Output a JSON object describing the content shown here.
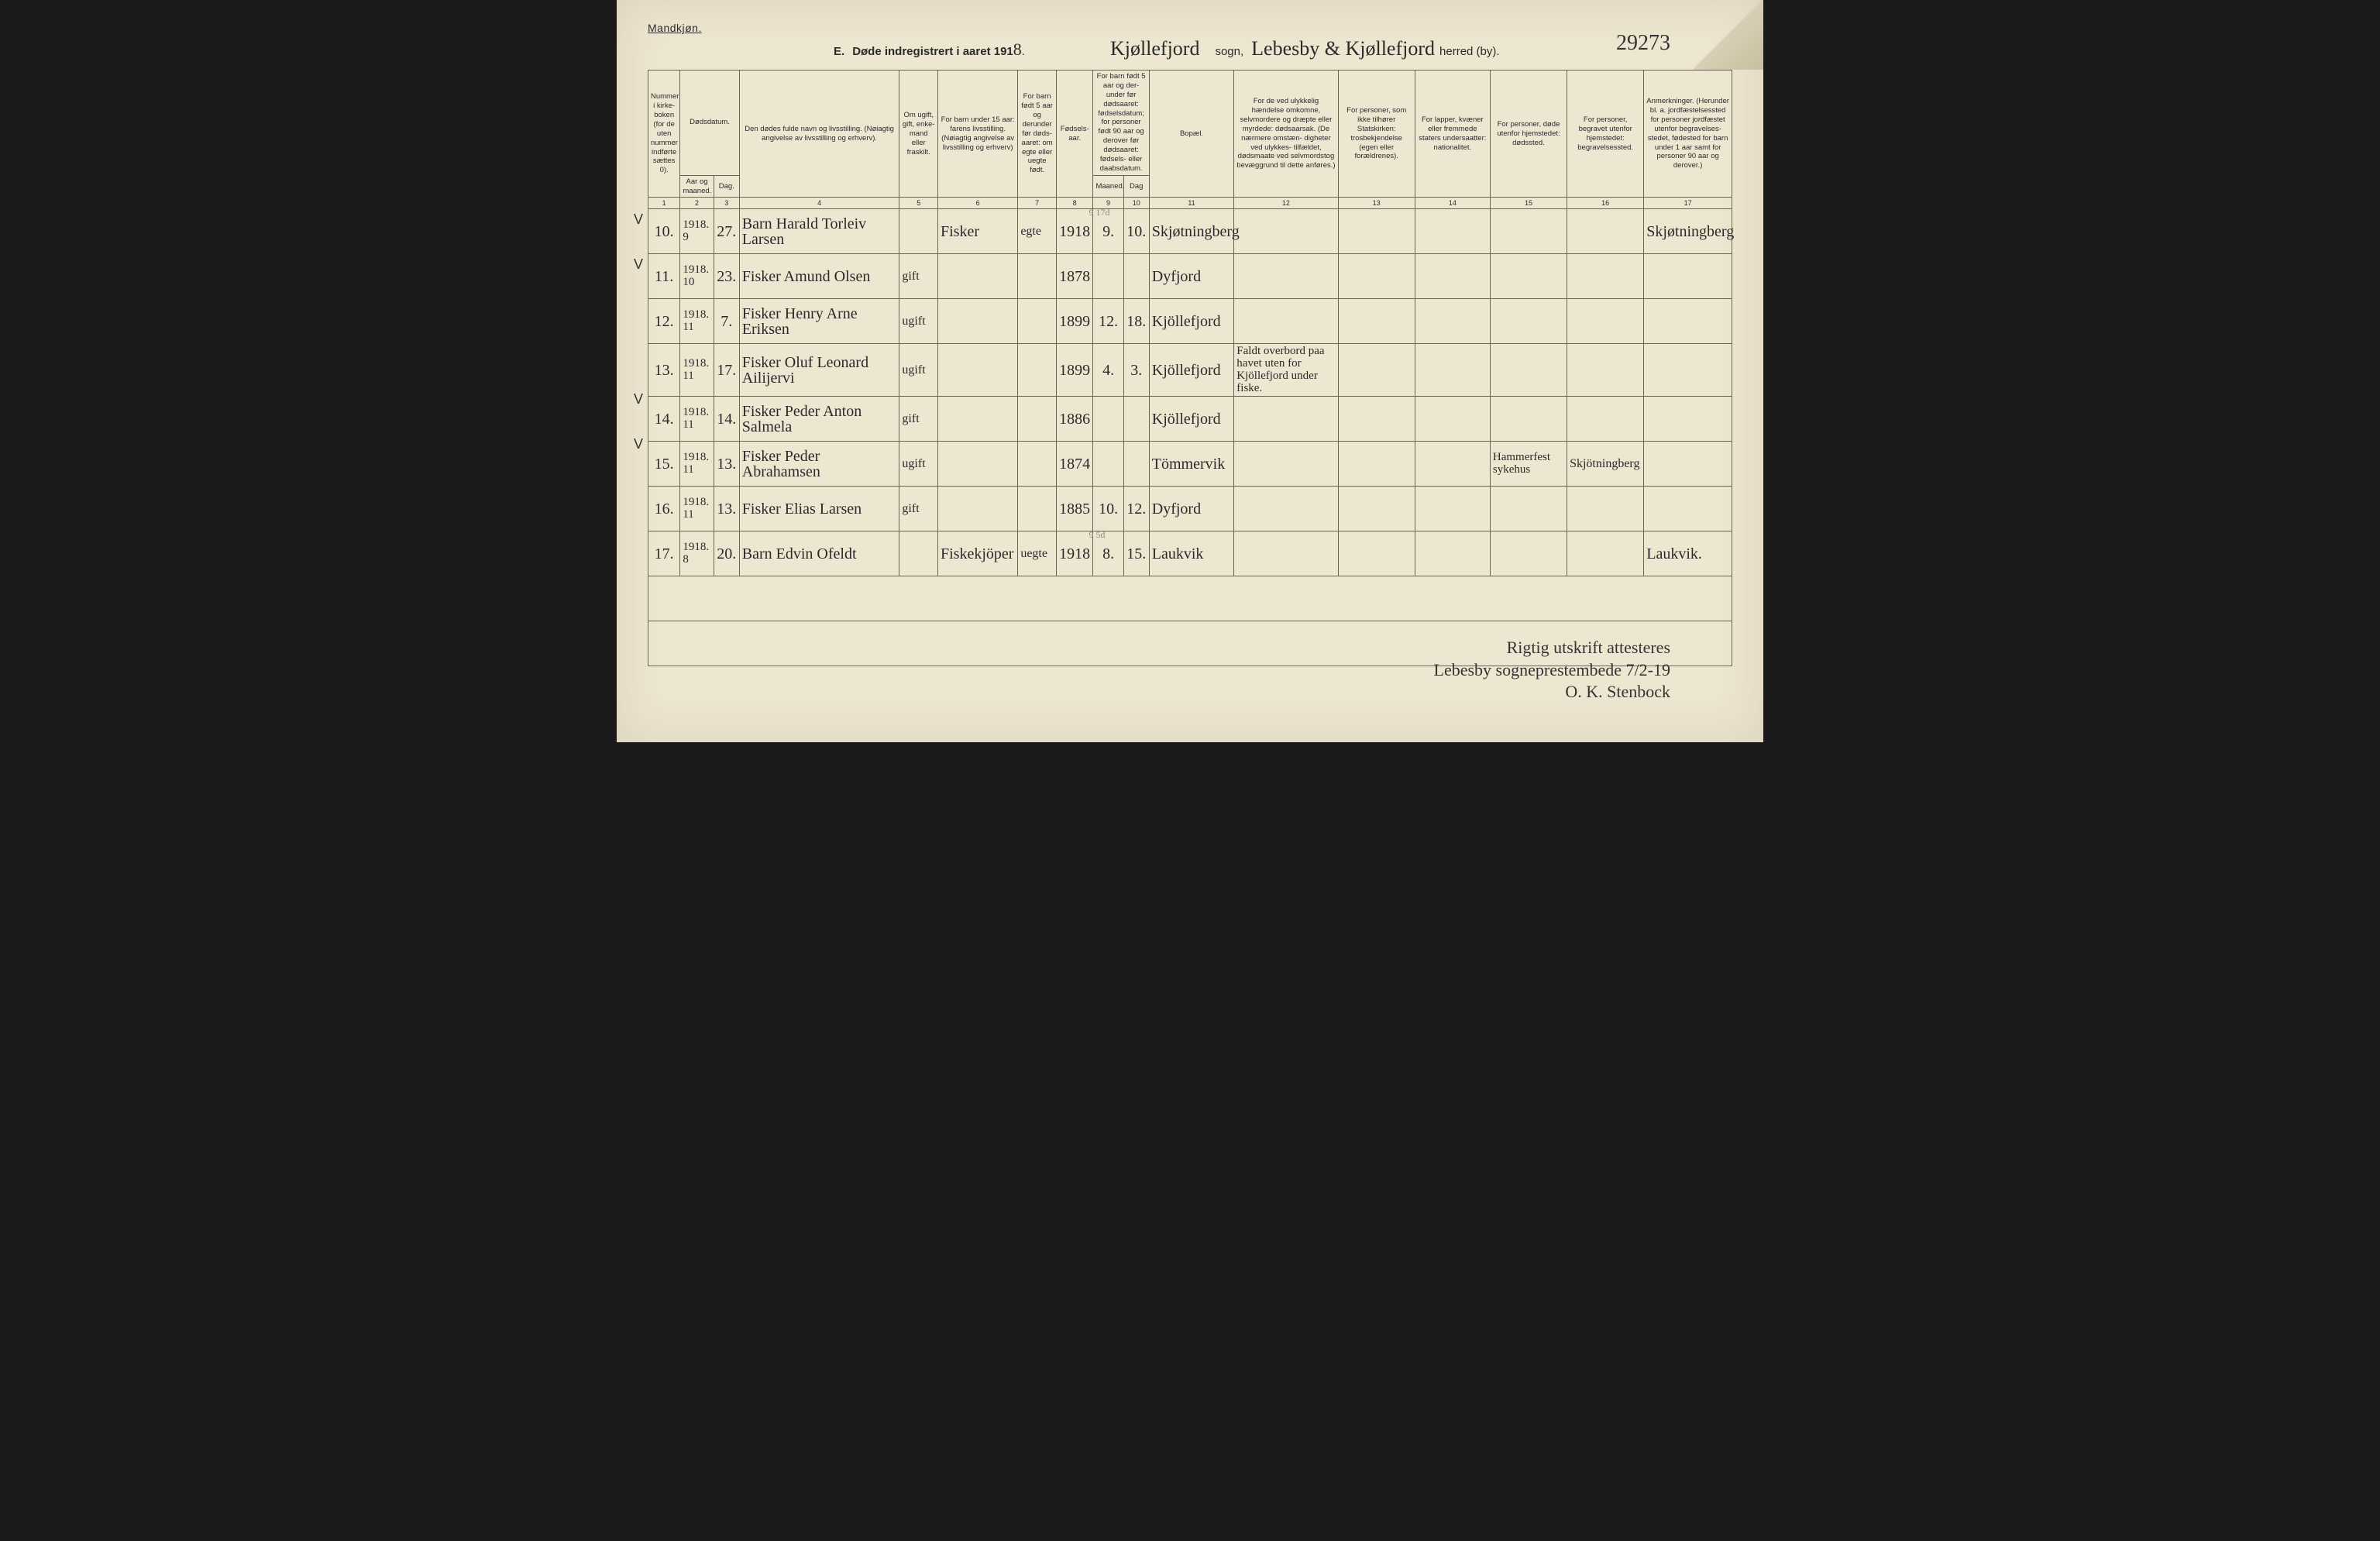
{
  "header": {
    "gender": "Mandkjøn.",
    "section": "E.",
    "title_prefix": "Døde indregistrert i aaret 191",
    "year_suffix": "8",
    "sogn_script": "Kjøllefjord",
    "sogn_label": "sogn,",
    "herred_script": "Lebesby & Kjøllefjord",
    "herred_label": "herred (by).",
    "ref_no": "29273"
  },
  "columns": {
    "c1": "Nummer i kirke- boken (for de uten nummer indførte sættes 0).",
    "c2": "Dødsdatum.",
    "c2a": "Aar og maaned.",
    "c2b": "Dag.",
    "c4": "Den dødes fulde navn og livsstilling. (Nøiagtig angivelse av livsstilling og erhverv).",
    "c5": "Om ugift, gift, enke- mand eller fraskilt.",
    "c6": "For barn under 15 aar: farens livsstilling. (Nøiagtig angivelse av livsstilling og erhverv)",
    "c7": "For barn født 5 aar og derunder før døds- aaret: om egte eller uegte født.",
    "c8": "Fødsels- aar.",
    "c9": "For barn født 5 aar og der- under før dødsaaret: fødselsdatum; for personer født 90 aar og derover før dødsaaret: fødsels- eller daabsdatum.",
    "c9a": "Maaned.",
    "c9b": "Dag",
    "c11": "Bopæl.",
    "c12": "For de ved ulykkelig hændelse omkomne, selvmordere og dræpte eller myrdede: dødsaarsak. (De nærmere omstæn- digheter ved ulykkes- tilfældet, dødsmaate ved selvmordstog bevæggrund til dette anføres.)",
    "c13": "For personer, som ikke tilhører Statskirken: trosbekjendelse (egen eller forældrenes).",
    "c14": "For lapper, kvæner eller fremmede staters undersaatter: nationalitet.",
    "c15": "For personer, døde utenfor hjemstedet: dødssted.",
    "c16": "For personer, begravet utenfor hjemstedet: begravelsessted.",
    "c17": "Anmerkninger. (Herunder bl. a. jordfæstelsessted for personer jordfæstet utenfor begravelses- stedet, fødested for barn under 1 aar samt for personer 90 aar og derover.)",
    "nums": [
      "1",
      "2",
      "3",
      "4",
      "5",
      "6",
      "7",
      "8",
      "9",
      "10",
      "11",
      "12",
      "13",
      "14",
      "15",
      "16",
      "17"
    ]
  },
  "rows": [
    {
      "chk": "",
      "no": "10.",
      "ym": "1918. 9",
      "d": "27.",
      "name": "Barn Harald Torleiv Larsen",
      "stat": "",
      "far": "Fisker",
      "egte": "egte",
      "faar": "1918",
      "m": "9.",
      "dg": "10.",
      "bop": "Skjøtningberg",
      "c12": "",
      "c13": "",
      "c14": "",
      "c15": "",
      "c16": "",
      "c17": "Skjøtningberg",
      "note": "9 17d"
    },
    {
      "chk": "V",
      "no": "11.",
      "ym": "1918. 10",
      "d": "23.",
      "name": "Fisker Amund Olsen",
      "stat": "gift",
      "far": "",
      "egte": "",
      "faar": "1878",
      "m": "",
      "dg": "",
      "bop": "Dyfjord",
      "c12": "",
      "c13": "",
      "c14": "",
      "c15": "",
      "c16": "",
      "c17": ""
    },
    {
      "chk": "V",
      "no": "12.",
      "ym": "1918. 11",
      "d": "7.",
      "name": "Fisker Henry Arne Eriksen",
      "stat": "ugift",
      "far": "",
      "egte": "",
      "faar": "1899",
      "m": "12.",
      "dg": "18.",
      "bop": "Kjöllefjord",
      "c12": "",
      "c13": "",
      "c14": "",
      "c15": "",
      "c16": "",
      "c17": ""
    },
    {
      "chk": "",
      "no": "13.",
      "ym": "1918. 11",
      "d": "17.",
      "name": "Fisker Oluf Leonard Ailijervi",
      "stat": "ugift",
      "far": "",
      "egte": "",
      "faar": "1899",
      "m": "4.",
      "dg": "3.",
      "bop": "Kjöllefjord",
      "c12": "Faldt overbord paa havet uten for Kjöllefjord under fiske.",
      "c13": "",
      "c14": "",
      "c15": "",
      "c16": "",
      "c17": ""
    },
    {
      "chk": "",
      "no": "14.",
      "ym": "1918. 11",
      "d": "14.",
      "name": "Fisker Peder Anton Salmela",
      "stat": "gift",
      "far": "",
      "egte": "",
      "faar": "1886",
      "m": "",
      "dg": "",
      "bop": "Kjöllefjord",
      "c12": "",
      "c13": "",
      "c14": "",
      "c15": "",
      "c16": "",
      "c17": ""
    },
    {
      "chk": "V",
      "no": "15.",
      "ym": "1918. 11",
      "d": "13.",
      "name": "Fisker Peder Abrahamsen",
      "stat": "ugift",
      "far": "",
      "egte": "",
      "faar": "1874",
      "m": "",
      "dg": "",
      "bop": "Tömmervik",
      "c12": "",
      "c13": "",
      "c14": "",
      "c15": "Hammerfest sykehus",
      "c16": "Skjötningberg",
      "c17": ""
    },
    {
      "chk": "V",
      "no": "16.",
      "ym": "1918. 11",
      "d": "13.",
      "name": "Fisker Elias Larsen",
      "stat": "gift",
      "far": "",
      "egte": "",
      "faar": "1885",
      "m": "10.",
      "dg": "12.",
      "bop": "Dyfjord",
      "c12": "",
      "c13": "",
      "c14": "",
      "c15": "",
      "c16": "",
      "c17": ""
    },
    {
      "chk": "",
      "no": "17.",
      "ym": "1918. 8",
      "d": "20.",
      "name": "Barn Edvin Ofeldt",
      "stat": "",
      "far": "Fiskekjöper",
      "egte": "uegte",
      "faar": "1918",
      "m": "8.",
      "dg": "15.",
      "bop": "Laukvik",
      "c12": "",
      "c13": "",
      "c14": "",
      "c15": "",
      "c16": "",
      "c17": "Laukvik.",
      "note": "9 5d"
    }
  ],
  "footer": {
    "l1": "Rigtig utskrift attesteres",
    "l2": "Lebesby sogneprestembede 7/2-19",
    "l3": "O. K. Stenbock"
  },
  "colwidths": [
    "40",
    "42",
    "32",
    "200",
    "48",
    "100",
    "48",
    "46",
    "38",
    "32",
    "106",
    "130",
    "96",
    "94",
    "96",
    "96",
    "110"
  ]
}
